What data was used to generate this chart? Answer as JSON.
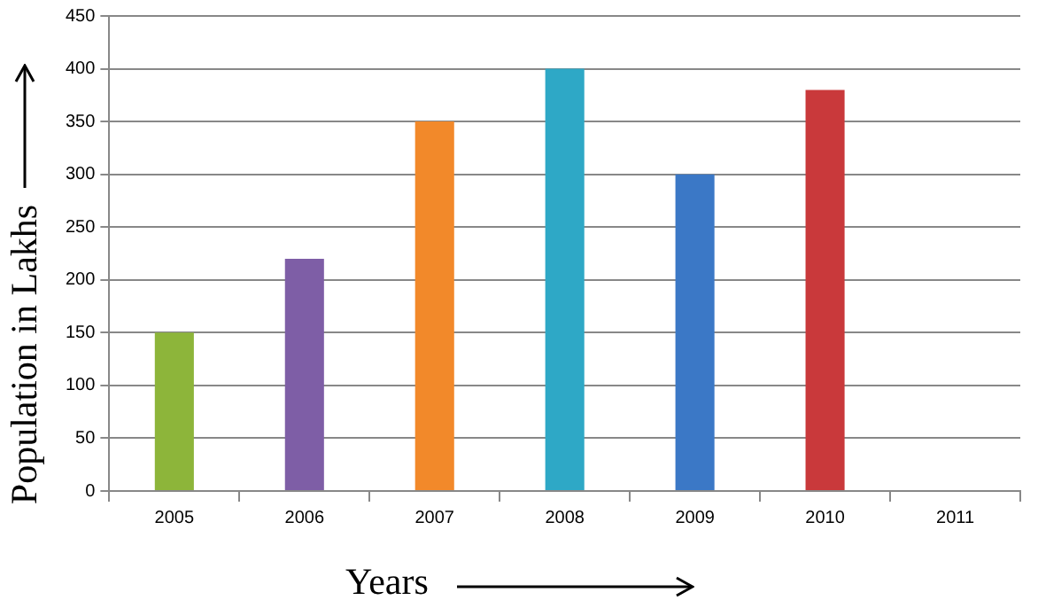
{
  "chart_data": {
    "type": "bar",
    "xlabel": "Years",
    "ylabel": "Population in Lakhs",
    "categories": [
      "2005",
      "2006",
      "2007",
      "2008",
      "2009",
      "2010",
      "2011"
    ],
    "values": [
      150,
      220,
      350,
      400,
      300,
      380,
      null
    ],
    "colors": [
      "#8db53a",
      "#7e5ea6",
      "#f2892a",
      "#2ea8c6",
      "#3b78c6",
      "#c9393b",
      null
    ],
    "ylim": [
      0,
      450
    ],
    "yticks": [
      0,
      50,
      100,
      150,
      200,
      250,
      300,
      350,
      400,
      450
    ],
    "grid": "y",
    "legend": false
  }
}
